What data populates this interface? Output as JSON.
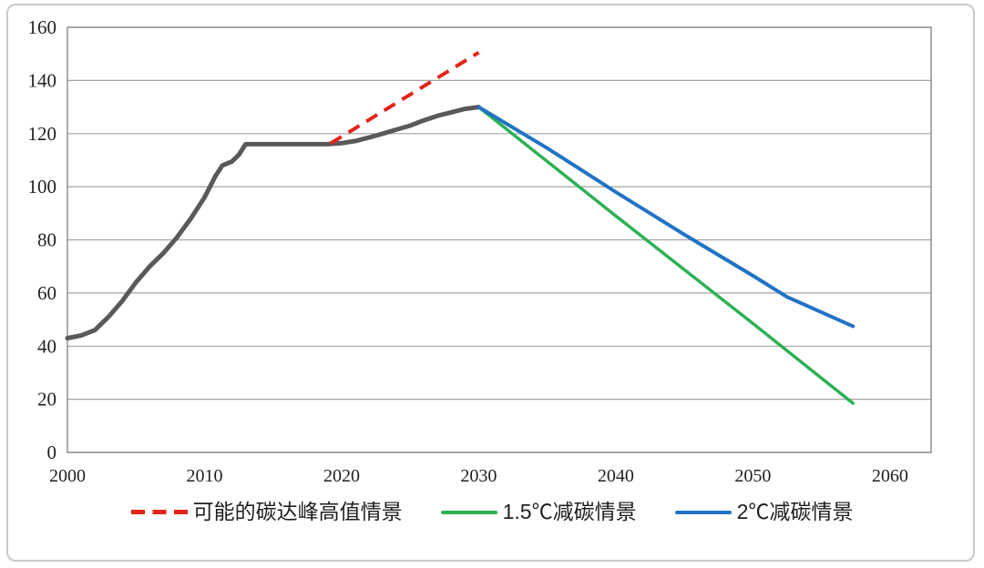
{
  "frame": {
    "border_color": "#c9c9c9",
    "background": "#ffffff"
  },
  "chart_data": {
    "type": "line",
    "title": "",
    "xlabel": "",
    "ylabel": "",
    "x_axis": {
      "min": 2000,
      "max": 2063,
      "tick_values": [
        2000,
        2010,
        2020,
        2030,
        2040,
        2050,
        2060
      ],
      "tick_labels": [
        "2000",
        "2010",
        "2020",
        "2030",
        "2040",
        "2050",
        "2060"
      ]
    },
    "y_axis": {
      "min": 0,
      "max": 160,
      "tick_values": [
        0,
        20,
        40,
        60,
        80,
        100,
        120,
        140,
        160
      ],
      "tick_labels": [
        "0",
        "20",
        "40",
        "60",
        "80",
        "100",
        "120",
        "140",
        "160"
      ]
    },
    "grid": {
      "horizontal": true,
      "vertical": false,
      "color": "#a3a3a3"
    },
    "plot_border_color": "#8f8f8f",
    "tick_label_color": "#1f1f1f",
    "series": [
      {
        "id": "historical-emissions",
        "label": "",
        "color": "#595959",
        "width": 5,
        "dash": "",
        "points": [
          [
            2000,
            43
          ],
          [
            2001,
            44
          ],
          [
            2002,
            46
          ],
          [
            2003,
            51
          ],
          [
            2004,
            57
          ],
          [
            2005,
            64
          ],
          [
            2006,
            70
          ],
          [
            2007,
            75
          ],
          [
            2008,
            81
          ],
          [
            2009,
            88
          ],
          [
            2010,
            96
          ],
          [
            2010.8,
            104
          ],
          [
            2011.3,
            108
          ],
          [
            2012,
            109.5
          ],
          [
            2012.5,
            112
          ],
          [
            2013,
            116
          ],
          [
            2014,
            116
          ],
          [
            2015,
            116
          ],
          [
            2016,
            116
          ],
          [
            2017,
            116
          ],
          [
            2018,
            116
          ],
          [
            2019,
            116
          ],
          [
            2020,
            116.4
          ],
          [
            2021,
            117.2
          ],
          [
            2022,
            118.5
          ],
          [
            2023,
            120
          ],
          [
            2024,
            121.5
          ],
          [
            2025,
            123
          ],
          [
            2026,
            125
          ],
          [
            2027,
            126.7
          ],
          [
            2028,
            128
          ],
          [
            2029,
            129.3
          ],
          [
            2030,
            130
          ]
        ]
      },
      {
        "id": "peak-high-scenario",
        "label": "可能的碳达峰高值情景",
        "color": "#e0251b",
        "width": 4,
        "dash": "14 9",
        "points": [
          [
            2019.2,
            116.3
          ],
          [
            2030,
            150.5
          ]
        ]
      },
      {
        "id": "scenario-1-5c",
        "label": "1.5℃减碳情景",
        "color": "#2db155",
        "width": 3.5,
        "dash": "",
        "points": [
          [
            2030,
            130
          ],
          [
            2040,
            89
          ],
          [
            2050,
            48.5
          ],
          [
            2057.3,
            18.5
          ]
        ]
      },
      {
        "id": "scenario-2c",
        "label": "2℃减碳情景",
        "color": "#2173c4",
        "width": 4,
        "dash": "",
        "points": [
          [
            2030,
            130
          ],
          [
            2035,
            114.5
          ],
          [
            2040,
            98
          ],
          [
            2045,
            82
          ],
          [
            2050,
            66.5
          ],
          [
            2052.5,
            58.5
          ],
          [
            2057.3,
            47.5
          ]
        ]
      }
    ],
    "legend": {
      "position": "bottom",
      "entries": [
        {
          "series": "peak-high-scenario",
          "label": "可能的碳达峰高值情景",
          "swatch": "dashed",
          "color": "#e0251b"
        },
        {
          "series": "scenario-1-5c",
          "label": "1.5℃减碳情景",
          "swatch": "solid",
          "color": "#2db155"
        },
        {
          "series": "scenario-2c",
          "label": "2℃减碳情景",
          "swatch": "solid",
          "color": "#2173c4"
        }
      ]
    }
  }
}
